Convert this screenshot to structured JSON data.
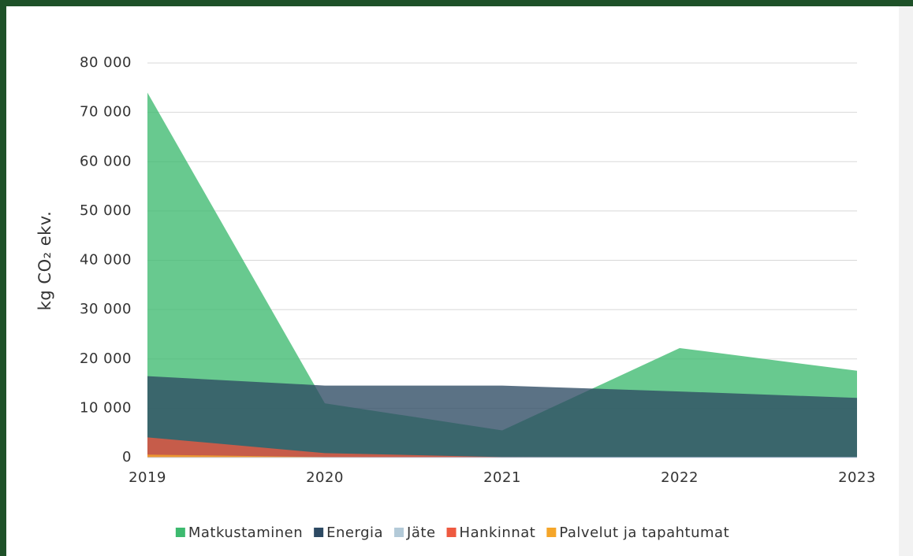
{
  "chart_data": {
    "type": "area",
    "y_label": "kg CO₂ ekv.",
    "x": [
      2019,
      2020,
      2021,
      2022,
      2023
    ],
    "xlim": [
      2019,
      2023
    ],
    "xticks": [
      2019,
      2020,
      2021,
      2022,
      2023
    ],
    "ylim": [
      0,
      80000
    ],
    "yticks": [
      0,
      {
        "value": 10000,
        "label": "10 000"
      },
      {
        "value": 20000,
        "label": "20 000"
      },
      {
        "value": 30000,
        "label": "30 000"
      },
      {
        "value": 40000,
        "label": "40 000"
      },
      {
        "value": 50000,
        "label": "50 000"
      },
      {
        "value": 60000,
        "label": "60 000"
      },
      {
        "value": 70000,
        "label": "70 000"
      },
      {
        "value": 80000,
        "label": "80 000"
      }
    ],
    "grid": true,
    "stacked": false,
    "legend": "bottom",
    "series": [
      {
        "name": "Matkustaminen",
        "color": "#3dba6f",
        "values": [
          74000,
          11000,
          5500,
          22200,
          17600
        ]
      },
      {
        "name": "Energia",
        "color": "#2d4a63",
        "values": [
          16500,
          14600,
          14600,
          13400,
          12100
        ]
      },
      {
        "name": "Jäte",
        "color": "#b3cad8",
        "values": [
          100,
          50,
          20,
          20,
          20
        ]
      },
      {
        "name": "Hankinnat",
        "color": "#ee5a40",
        "values": [
          4100,
          900,
          100,
          50,
          50
        ]
      },
      {
        "name": "Palvelut ja tapahtumat",
        "color": "#f5a62a",
        "values": [
          600,
          100,
          50,
          50,
          50
        ]
      }
    ]
  }
}
